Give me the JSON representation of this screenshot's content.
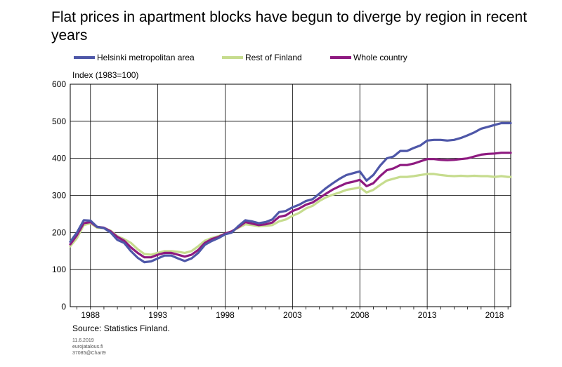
{
  "chart_data": {
    "type": "line",
    "title": "Flat prices in apartment blocks have begun to diverge by region in recent years",
    "ylabel": "Index (1983=100)",
    "xlabel": "",
    "source": "Source: Statistics Finland.",
    "xlim": [
      1986.5,
      2019.2
    ],
    "ylim": [
      0,
      600
    ],
    "yticks": [
      0,
      100,
      200,
      300,
      400,
      500,
      600
    ],
    "xticks": [
      1988,
      1993,
      1998,
      2003,
      2008,
      2013,
      2018
    ],
    "grid": true,
    "legend_position": "top",
    "x": [
      1986.5,
      1987,
      1987.5,
      1988,
      1988.5,
      1989,
      1989.5,
      1990,
      1990.5,
      1991,
      1991.5,
      1992,
      1992.5,
      1993,
      1993.5,
      1994,
      1994.5,
      1995,
      1995.5,
      1996,
      1996.5,
      1997,
      1997.5,
      1998,
      1998.5,
      1999,
      1999.5,
      2000,
      2000.5,
      2001,
      2001.5,
      2002,
      2002.5,
      2003,
      2003.5,
      2004,
      2004.5,
      2005,
      2005.5,
      2006,
      2006.5,
      2007,
      2007.5,
      2008,
      2008.5,
      2009,
      2009.5,
      2010,
      2010.5,
      2011,
      2011.5,
      2012,
      2012.5,
      2013,
      2013.5,
      2014,
      2014.5,
      2015,
      2015.5,
      2016,
      2016.5,
      2017,
      2017.5,
      2018,
      2018.5,
      2019,
      2019.2
    ],
    "series": [
      {
        "name": "Helsinki metropolitan area",
        "color": "#4e57a8",
        "values": [
          175,
          200,
          233,
          232,
          215,
          212,
          200,
          180,
          172,
          150,
          132,
          120,
          122,
          130,
          138,
          138,
          130,
          123,
          130,
          145,
          167,
          177,
          185,
          195,
          200,
          218,
          233,
          230,
          225,
          228,
          235,
          255,
          258,
          268,
          275,
          285,
          290,
          305,
          320,
          333,
          345,
          355,
          360,
          365,
          340,
          355,
          380,
          400,
          405,
          420,
          420,
          428,
          435,
          448,
          450,
          450,
          448,
          450,
          455,
          462,
          470,
          480,
          485,
          490,
          495,
          495,
          495
        ]
      },
      {
        "name": "Rest of Finland",
        "color": "#c6dc8e",
        "values": [
          163,
          185,
          220,
          225,
          213,
          212,
          205,
          190,
          182,
          172,
          155,
          142,
          140,
          145,
          150,
          150,
          148,
          145,
          150,
          163,
          178,
          185,
          190,
          197,
          203,
          213,
          222,
          220,
          217,
          218,
          220,
          230,
          235,
          245,
          253,
          265,
          272,
          285,
          295,
          302,
          308,
          315,
          318,
          322,
          308,
          315,
          328,
          340,
          345,
          350,
          350,
          352,
          355,
          358,
          358,
          355,
          353,
          352,
          353,
          352,
          353,
          352,
          352,
          350,
          352,
          350,
          350
        ]
      },
      {
        "name": "Whole country",
        "color": "#8e1a80",
        "values": [
          168,
          193,
          225,
          228,
          215,
          213,
          203,
          188,
          178,
          160,
          145,
          133,
          133,
          140,
          145,
          145,
          140,
          135,
          140,
          153,
          172,
          182,
          188,
          197,
          203,
          215,
          228,
          224,
          220,
          222,
          227,
          242,
          246,
          258,
          265,
          275,
          281,
          293,
          305,
          316,
          325,
          333,
          337,
          342,
          325,
          333,
          352,
          368,
          373,
          382,
          382,
          386,
          392,
          398,
          398,
          396,
          395,
          396,
          398,
          400,
          405,
          410,
          412,
          413,
          415,
          415,
          415
        ]
      }
    ],
    "footer": {
      "date": "11.6.2019",
      "site": "eurojatalous.fi",
      "id": "37085@Chart9"
    }
  }
}
